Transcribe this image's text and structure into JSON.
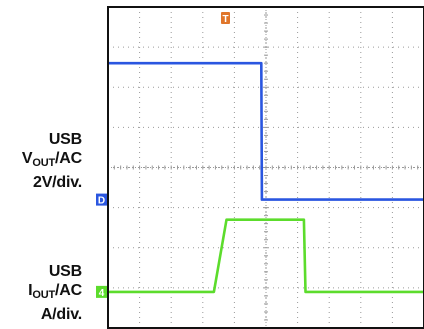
{
  "channel1": {
    "line1": "USB",
    "line2_main": "V",
    "line2_sub": "OUT",
    "line2_tail": "/AC",
    "line3": "2V/div."
  },
  "channel2": {
    "line1": "USB",
    "line2_main": "I",
    "line2_sub": "OUT",
    "line2_tail": "/AC",
    "line3": "A/div."
  },
  "markers": {
    "trigger": "T",
    "ch1": "D",
    "ch2": "4"
  },
  "colors": {
    "ch1": "#2a56e0",
    "ch2": "#5cdc2c",
    "trigger": "#e0762a",
    "grid": "#9a9a9a",
    "frame": "#111111"
  },
  "chart_data": {
    "type": "line",
    "title": "",
    "xlabel": "",
    "ylabel": "",
    "grid": true,
    "x_divisions": 10,
    "y_divisions": 8,
    "xlim": [
      0,
      10
    ],
    "ylim": [
      0,
      8
    ],
    "series": [
      {
        "channel": "ch1",
        "x": [
          0,
          4.85,
          4.87,
          10
        ],
        "y": [
          6.6,
          6.6,
          3.2,
          3.2
        ]
      },
      {
        "channel": "ch2",
        "x": [
          0,
          0.55,
          3.35,
          3.75,
          6.2,
          6.25,
          6.3,
          10
        ],
        "y": [
          0.9,
          0.9,
          0.9,
          2.7,
          2.7,
          0.9,
          0.9,
          0.9
        ]
      }
    ]
  }
}
